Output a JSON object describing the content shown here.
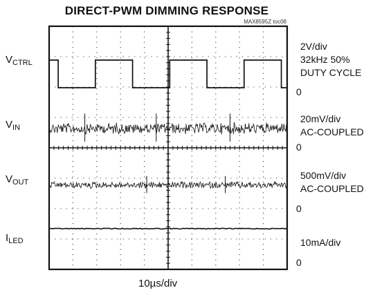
{
  "chart_data": {
    "type": "line",
    "title": "DIRECT-PWM DIMMING RESPONSE",
    "doc_id": "MAX8595Z toc08",
    "xlabel": "10µs/div",
    "x_divisions": 10,
    "y_divisions": 8,
    "grid": true,
    "series": [
      {
        "name": "VCTRL",
        "label_main": "V",
        "label_sub": "CTRL",
        "scale_lines": [
          "2V/div",
          "32kHz 50%",
          "DUTY CYCLE"
        ],
        "zero_label": "0",
        "waveform": "square",
        "frequency_khz": 32,
        "duty_cycle_percent": 50,
        "amplitude_v": 3.3
      },
      {
        "name": "VIN",
        "label_main": "V",
        "label_sub": "IN",
        "scale_lines": [
          "20mV/div",
          "AC-COUPLED"
        ],
        "zero_label": "0",
        "waveform": "noise"
      },
      {
        "name": "VOUT",
        "label_main": "V",
        "label_sub": "OUT",
        "scale_lines": [
          "500mV/div",
          "AC-COUPLED"
        ],
        "zero_label": "0",
        "waveform": "noise"
      },
      {
        "name": "ILED",
        "label_main": "I",
        "label_sub": "LED",
        "scale_lines": [
          "10mA/div"
        ],
        "zero_label": "0",
        "waveform": "flat"
      }
    ]
  },
  "colors": {
    "trace": "#111111",
    "grid": "#444444",
    "background": "#ffffff"
  }
}
